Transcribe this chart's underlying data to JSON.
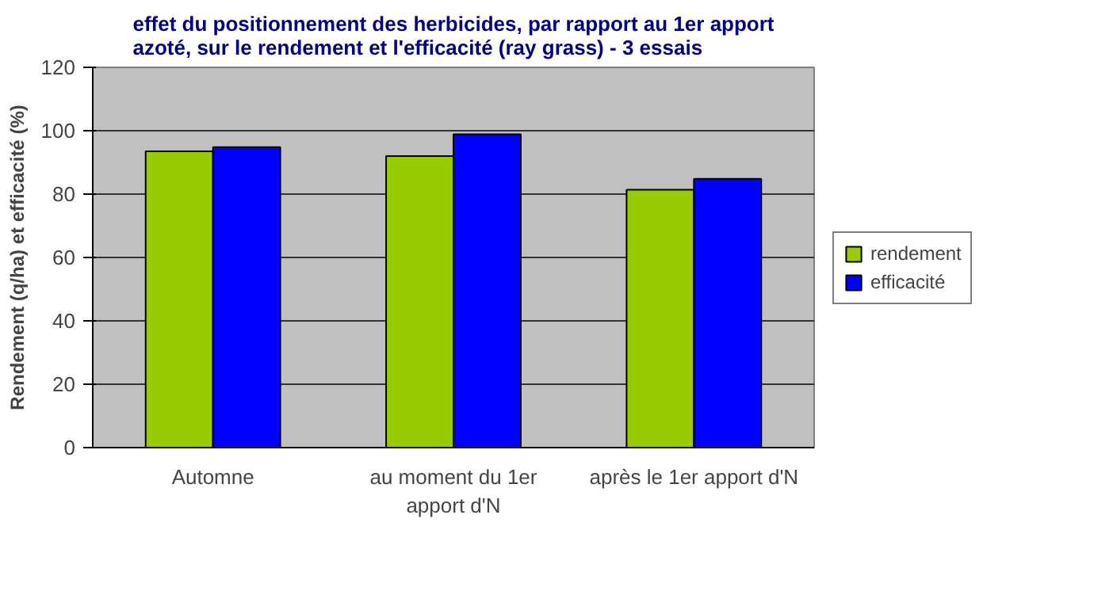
{
  "chart_data": {
    "type": "bar",
    "title": "effet du positionnement des herbicides, par rapport au 1er apport azoté, sur le rendement et l'efficacité (ray grass) - 3 essais",
    "ylabel": "Rendement (q/ha) et efficacité (%)",
    "categories": [
      "Automne",
      "au moment du 1er\napport d'N",
      "après le 1er apport d'N"
    ],
    "series": [
      {
        "name": "rendement",
        "color": "#99cc00",
        "values": [
          93.5,
          92,
          81.4
        ]
      },
      {
        "name": "efficacité",
        "color": "#0000ff",
        "values": [
          94.8,
          98.9,
          84.8
        ]
      }
    ],
    "ylim": [
      0,
      120
    ],
    "yticks": [
      0,
      20,
      40,
      60,
      80,
      100,
      120
    ],
    "grid": "y",
    "legend": "right"
  }
}
